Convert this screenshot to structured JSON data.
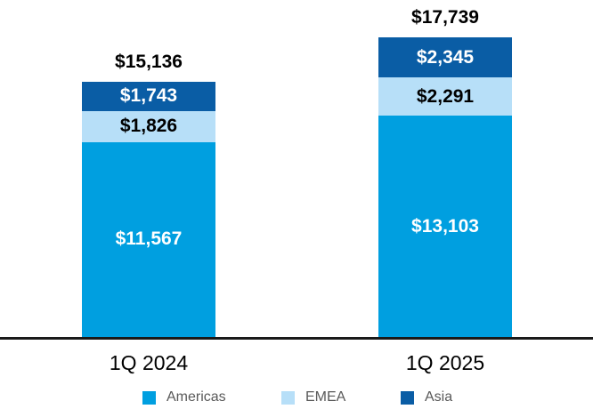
{
  "chart_data": {
    "type": "bar",
    "stacked": true,
    "categories": [
      "1Q 2024",
      "1Q 2025"
    ],
    "series": [
      {
        "name": "Americas",
        "color": "#009FE0",
        "label_color": "#FFFFFF",
        "values": [
          11567,
          13103
        ],
        "value_labels": [
          "$11,567",
          "$13,103"
        ]
      },
      {
        "name": "EMEA",
        "color": "#B7DFF8",
        "label_color": "#000000",
        "values": [
          1826,
          2291
        ],
        "value_labels": [
          "$1,826",
          "$2,291"
        ]
      },
      {
        "name": "Asia",
        "color": "#0A5DA5",
        "label_color": "#FFFFFF",
        "values": [
          1743,
          2345
        ],
        "value_labels": [
          "$1,743",
          "$2,345"
        ]
      }
    ],
    "totals": [
      15136,
      17739
    ],
    "total_labels": [
      "$15,136",
      "$17,739"
    ],
    "legend": [
      "Americas",
      "EMEA",
      "Asia"
    ],
    "legend_position": "bottom",
    "baseline_color": "#1A1A1A",
    "background_color": "#FFFFFF",
    "grid": false,
    "ylim": [
      0,
      17739
    ]
  }
}
